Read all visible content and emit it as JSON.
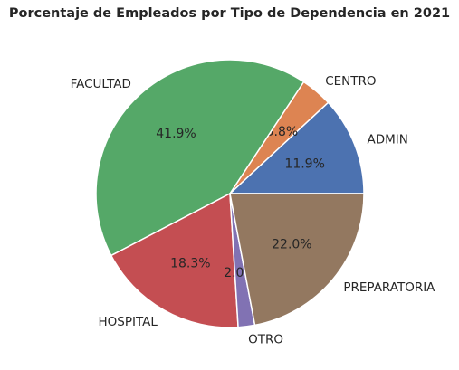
{
  "chart_data": {
    "type": "pie",
    "title": "Porcentaje de Empleados por Tipo de Dependencia en 2021",
    "slices": [
      {
        "label": "ADMIN",
        "value": 11.9,
        "pct_label": "11.9%",
        "color": "#4c72b0"
      },
      {
        "label": "CENTRO",
        "value": 3.8,
        "pct_label": "3.8%",
        "color": "#dd8452"
      },
      {
        "label": "FACULTAD",
        "value": 41.9,
        "pct_label": "41.9%",
        "color": "#55a868"
      },
      {
        "label": "HOSPITAL",
        "value": 18.3,
        "pct_label": "18.3%",
        "color": "#c44e52"
      },
      {
        "label": "OTRO",
        "value": 2.0,
        "pct_label": "2.0%",
        "color": "#8172b3"
      },
      {
        "label": "PREPARATORIA",
        "value": 22.0,
        "pct_label": "22.0%",
        "color": "#937860"
      }
    ],
    "start_angle": 0,
    "direction": "counterclockwise"
  }
}
